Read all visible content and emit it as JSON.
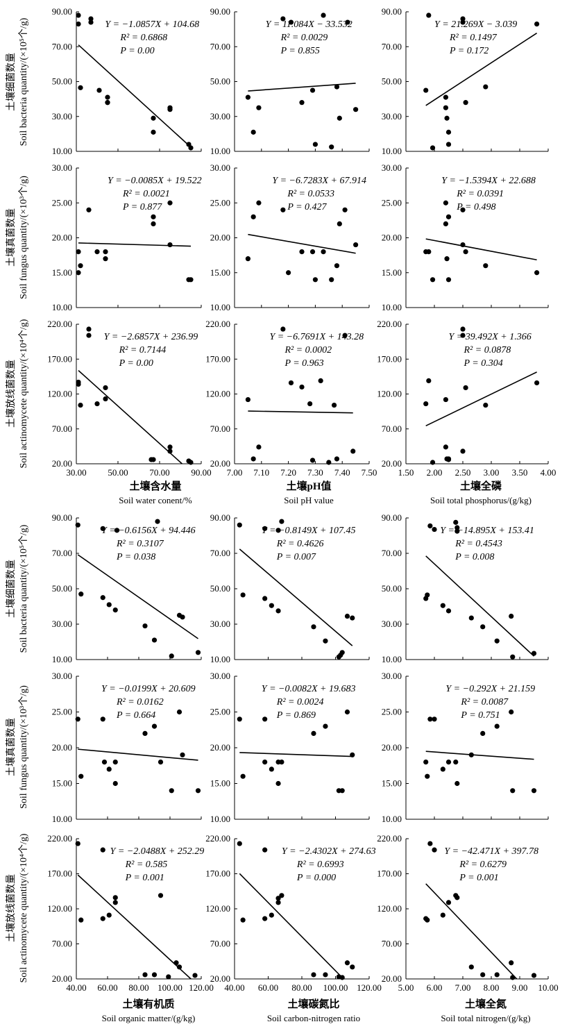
{
  "y_labels": {
    "bacteria_cn": "土壤细菌数量",
    "bacteria_en": "Soil bacteria quantity/(×10⁵个/g)",
    "fungus_cn": "土壤真菌数量",
    "fungus_en": "Soil fungus quantity/(×10³个/g)",
    "actino_cn": "土壤放线菌数量",
    "actino_en": "Soil actinomycete quantity/(×10⁴个/g)"
  },
  "x_labels": {
    "water_cn": "土壤含水量",
    "water_en": "Soil water conent/%",
    "ph_cn": "土壤pH值",
    "ph_en": "Soil pH value",
    "tp_cn": "土壤全磷",
    "tp_en": "Soil total phosphorus/(g/kg)",
    "om_cn": "土壤有机质",
    "om_en": "Soil organic matter/(g/kg)",
    "cn_cn": "土壤碳氮比",
    "cn_en": "Soil  carbon-nitrogen ratio",
    "tn_cn": "土壤全氮",
    "tn_en": "Soil total nitrogen/(g/kg)"
  },
  "chart_data": [
    {
      "type": "scatter",
      "id": "water-bacteria",
      "xlim": [
        30,
        90
      ],
      "ylim": [
        10,
        90
      ],
      "xticks": [
        "30.00",
        "50.00",
        "70.00",
        "90.00"
      ],
      "yticks": [
        "10.00",
        "30.00",
        "50.00",
        "70.00",
        "90.00"
      ],
      "show_xticks": false,
      "x": [
        31,
        31,
        32,
        37,
        37,
        41,
        45,
        45,
        45,
        67,
        67,
        75,
        75,
        84,
        85
      ],
      "y": [
        88,
        83,
        46.5,
        86,
        84,
        45,
        41,
        38,
        38,
        29,
        21,
        35,
        34,
        14,
        12
      ],
      "slope": -1.0857,
      "intercept": 104.68,
      "equation": "Y = −1.0857X + 104.68",
      "r2": "0.6868",
      "p": "0.00"
    },
    {
      "type": "scatter",
      "id": "ph-bacteria",
      "xlim": [
        7.0,
        7.5
      ],
      "ylim": [
        10,
        90
      ],
      "xticks": [
        "7.00",
        "7.10",
        "7.20",
        "7.30",
        "7.40",
        "7.50"
      ],
      "yticks": [
        "10.00",
        "30.00",
        "50.00",
        "70.00",
        "90.00"
      ],
      "show_xticks": false,
      "x": [
        7.05,
        7.07,
        7.09,
        7.18,
        7.21,
        7.25,
        7.29,
        7.3,
        7.33,
        7.36,
        7.38,
        7.39,
        7.42,
        7.45
      ],
      "y": [
        41,
        21,
        35,
        86,
        84,
        38,
        45,
        14,
        88,
        12.5,
        47,
        29,
        84,
        34
      ],
      "slope": 11.084,
      "intercept": -33.532,
      "equation": "Y = 11.084X −  33.532",
      "r2": "0.0029",
      "p": "0.855"
    },
    {
      "type": "scatter",
      "id": "tp-bacteria",
      "xlim": [
        1.5,
        4.0
      ],
      "ylim": [
        10,
        90
      ],
      "xticks": [
        "1.50",
        "2.00",
        "2.50",
        "3.00",
        "3.50",
        "4.00"
      ],
      "yticks": [
        "10.00",
        "30.00",
        "50.00",
        "70.00",
        "90.00"
      ],
      "show_xticks": false,
      "x": [
        1.85,
        1.9,
        1.97,
        2.2,
        2.2,
        2.22,
        2.25,
        2.25,
        2.5,
        2.5,
        2.55,
        2.9,
        3.8
      ],
      "y": [
        45,
        88,
        12,
        41,
        35,
        29,
        21,
        14,
        86,
        84,
        38,
        47,
        83
      ],
      "slope": 21.269,
      "intercept": -3.039,
      "equation": "Y = 21.269X −  3.039",
      "r2": "0.1497",
      "p": "0.172"
    },
    {
      "type": "scatter",
      "id": "water-fungus",
      "xlim": [
        30,
        90
      ],
      "ylim": [
        10,
        30
      ],
      "xticks": [
        "30.00",
        "50.00",
        "70.00",
        "90.00"
      ],
      "yticks": [
        "10.00",
        "15.00",
        "20.00",
        "25.00",
        "30.00"
      ],
      "show_xticks": false,
      "x": [
        31,
        31,
        32,
        36,
        40,
        44,
        44,
        67,
        67,
        75,
        75,
        84,
        85
      ],
      "y": [
        18,
        15,
        16,
        24,
        18,
        18,
        17,
        23,
        22,
        25,
        19,
        14,
        14
      ],
      "slope": -0.0085,
      "intercept": 19.522,
      "equation": "Y = −0.0085X + 19.522",
      "r2": "0.0021",
      "p": "0.877"
    },
    {
      "type": "scatter",
      "id": "ph-fungus",
      "xlim": [
        7.0,
        7.5
      ],
      "ylim": [
        10,
        30
      ],
      "xticks": [
        "7.00",
        "7.10",
        "7.20",
        "7.30",
        "7.40",
        "7.50"
      ],
      "yticks": [
        "10.00",
        "15.00",
        "20.00",
        "25.00",
        "30.00"
      ],
      "show_xticks": false,
      "x": [
        7.05,
        7.07,
        7.09,
        7.18,
        7.2,
        7.25,
        7.29,
        7.3,
        7.33,
        7.36,
        7.38,
        7.39,
        7.41,
        7.45
      ],
      "y": [
        17,
        23,
        25,
        24,
        15,
        18,
        18,
        14,
        18,
        14,
        16,
        22,
        24,
        19
      ],
      "slope": -6.7283,
      "intercept": 67.914,
      "equation": "Y = −6.7283X + 67.914",
      "r2": "0.0533",
      "p": "0.427"
    },
    {
      "type": "scatter",
      "id": "tp-fungus",
      "xlim": [
        1.5,
        4.0
      ],
      "ylim": [
        10,
        30
      ],
      "xticks": [
        "1.50",
        "2.00",
        "2.50",
        "3.00",
        "3.50",
        "4.00"
      ],
      "yticks": [
        "10.00",
        "15.00",
        "20.00",
        "25.00",
        "30.00"
      ],
      "show_xticks": false,
      "x": [
        1.85,
        1.9,
        1.97,
        2.2,
        2.2,
        2.22,
        2.25,
        2.25,
        2.5,
        2.5,
        2.55,
        2.9,
        3.8
      ],
      "y": [
        18,
        18,
        14,
        25,
        22,
        17,
        23,
        14,
        24,
        19,
        18,
        16,
        15
      ],
      "slope": -1.5394,
      "intercept": 22.688,
      "equation": "Y = −1.5394X + 22.688",
      "r2": "0.0391",
      "p": "0.498"
    },
    {
      "type": "scatter",
      "id": "water-actino",
      "xlim": [
        30,
        90
      ],
      "ylim": [
        20,
        220
      ],
      "xticks": [
        "30.00",
        "50.00",
        "70.00",
        "90.00"
      ],
      "yticks": [
        "20.00",
        "70.00",
        "120.00",
        "170.00",
        "220.00"
      ],
      "show_xticks": true,
      "x": [
        31,
        31,
        32,
        36,
        36,
        40,
        44,
        44,
        66,
        67,
        75,
        75,
        84,
        85
      ],
      "y": [
        137,
        134,
        104,
        213,
        204,
        106,
        129,
        113,
        26,
        26,
        44,
        38,
        24,
        22
      ],
      "slope": -2.6857,
      "intercept": 236.99,
      "equation": "Y = −2.6857X + 236.99",
      "r2": "0.7144",
      "p": "0.00"
    },
    {
      "type": "scatter",
      "id": "ph-actino",
      "xlim": [
        7.0,
        7.5
      ],
      "ylim": [
        20,
        220
      ],
      "xticks": [
        "7.00",
        "7.10",
        "7.20",
        "7.30",
        "7.40",
        "7.50"
      ],
      "yticks": [
        "20.00",
        "70.00",
        "120.00",
        "170.00",
        "220.00"
      ],
      "show_xticks": true,
      "x": [
        7.05,
        7.07,
        7.09,
        7.18,
        7.21,
        7.25,
        7.28,
        7.29,
        7.32,
        7.35,
        7.37,
        7.38,
        7.41,
        7.44
      ],
      "y": [
        112,
        27,
        44,
        213,
        136,
        130,
        106,
        25,
        139,
        22,
        104,
        27,
        204,
        38
      ],
      "slope": -6.7691,
      "intercept": 143.28,
      "equation": "Y = −6.7691X + 143.28",
      "r2": "0.0002",
      "p": "0.963"
    },
    {
      "type": "scatter",
      "id": "tp-actino",
      "xlim": [
        1.5,
        4.0
      ],
      "ylim": [
        20,
        220
      ],
      "xticks": [
        "1.50",
        "2.00",
        "2.50",
        "3.00",
        "3.50",
        "4.00"
      ],
      "yticks": [
        "20.00",
        "70.00",
        "120.00",
        "170.00",
        "220.00"
      ],
      "show_xticks": true,
      "x": [
        1.85,
        1.9,
        1.97,
        2.2,
        2.2,
        2.22,
        2.25,
        2.25,
        2.5,
        2.5,
        2.5,
        2.55,
        2.9,
        3.8
      ],
      "y": [
        106,
        139,
        22,
        44,
        112,
        27,
        27,
        26,
        213,
        204,
        38,
        129,
        104,
        136
      ],
      "slope": 39.492,
      "intercept": 1.366,
      "equation": "Y = 39.492X + 1.366",
      "r2": "0.0878",
      "p": "0.304"
    },
    {
      "type": "scatter",
      "id": "om-bacteria",
      "xlim": [
        40,
        120
      ],
      "ylim": [
        10,
        90
      ],
      "xticks": [
        "40.00",
        "60.00",
        "80.00",
        "100.00",
        "120.00"
      ],
      "yticks": [
        "10.00",
        "30.00",
        "50.00",
        "70.00",
        "90.00"
      ],
      "show_xticks": false,
      "x": [
        41,
        43,
        57,
        57,
        61,
        65,
        66,
        84,
        90,
        92,
        101,
        106,
        108,
        118
      ],
      "y": [
        86,
        47,
        84,
        45,
        41,
        38,
        83,
        29,
        21,
        88,
        12,
        35,
        34,
        14
      ],
      "slope": -0.6156,
      "intercept": 94.446,
      "equation": "Y = −0.6156X + 94.446",
      "r2": "0.3107",
      "p": "0.038"
    },
    {
      "type": "scatter",
      "id": "cn-bacteria",
      "xlim": [
        40,
        120
      ],
      "ylim": [
        10,
        90
      ],
      "xticks": [
        "40.00",
        "60.00",
        "80.00",
        "100.00",
        "120.00"
      ],
      "yticks": [
        "10.00",
        "30.00",
        "50.00",
        "70.00",
        "90.00"
      ],
      "show_xticks": false,
      "x": [
        43,
        45,
        58,
        58,
        62,
        66,
        66,
        68,
        87,
        94,
        102,
        103,
        104,
        107,
        110
      ],
      "y": [
        86,
        46.5,
        84,
        44.5,
        40.5,
        37.5,
        83,
        88,
        28.5,
        20.5,
        11.5,
        12.5,
        14,
        34.5,
        33.5
      ],
      "slope": -0.8149,
      "intercept": 107.45,
      "equation": "Y = −0.8149X + 107.45",
      "r2": "0.4626",
      "p": "0.007"
    },
    {
      "type": "scatter",
      "id": "tn-bacteria",
      "xlim": [
        5,
        10
      ],
      "ylim": [
        10,
        90
      ],
      "xticks": [
        "5.00",
        "6.00",
        "7.00",
        "8.00",
        "9.00",
        "10.00"
      ],
      "yticks": [
        "10.00",
        "30.00",
        "50.00",
        "70.00",
        "90.00"
      ],
      "show_xticks": false,
      "x": [
        5.7,
        5.75,
        5.85,
        6.0,
        6.3,
        6.5,
        6.75,
        6.8,
        6.8,
        7.3,
        7.7,
        8.2,
        8.7,
        8.75,
        9.5
      ],
      "y": [
        44.5,
        46.5,
        85.5,
        83.5,
        40.5,
        37.5,
        87.5,
        82.5,
        84.5,
        33.5,
        28.5,
        20.5,
        34.5,
        11.5,
        13.5
      ],
      "slope": -14.895,
      "intercept": 153.41,
      "equation": "Y = −14.895X + 153.41",
      "r2": "0.4543",
      "p": "0.008"
    },
    {
      "type": "scatter",
      "id": "om-fungus",
      "xlim": [
        40,
        120
      ],
      "ylim": [
        10,
        30
      ],
      "xticks": [
        "40.00",
        "60.00",
        "80.00",
        "100.00",
        "120.00"
      ],
      "yticks": [
        "10.00",
        "15.00",
        "20.00",
        "25.00",
        "30.00"
      ],
      "show_xticks": false,
      "x": [
        41,
        43,
        57,
        58,
        61,
        65,
        65,
        84,
        90,
        94,
        101,
        106,
        108,
        118
      ],
      "y": [
        24,
        16,
        24,
        18,
        17,
        18,
        15,
        22,
        23,
        18,
        14,
        25,
        19,
        14
      ],
      "slope": -0.0199,
      "intercept": 20.609,
      "equation": "Y = −0.0199X + 20.609",
      "r2": "0.0162",
      "p": "0.664"
    },
    {
      "type": "scatter",
      "id": "cn-fungus",
      "xlim": [
        40,
        120
      ],
      "ylim": [
        10,
        30
      ],
      "xticks": [
        "40.00",
        "60.00",
        "80.00",
        "100.00",
        "120.00"
      ],
      "yticks": [
        "10.00",
        "15.00",
        "20.00",
        "25.00",
        "30.00"
      ],
      "show_xticks": false,
      "x": [
        43,
        45,
        58,
        58,
        62,
        66,
        66,
        68,
        87,
        94,
        102,
        104,
        107,
        110
      ],
      "y": [
        24,
        16,
        24,
        18,
        17,
        18,
        15,
        18,
        22,
        23,
        14,
        14,
        25,
        19
      ],
      "slope": -0.0082,
      "intercept": 19.683,
      "equation": "Y = −0.0082X + 19.683",
      "r2": "0.0024",
      "p": "0.869"
    },
    {
      "type": "scatter",
      "id": "tn-fungus",
      "xlim": [
        5,
        10
      ],
      "ylim": [
        10,
        30
      ],
      "xticks": [
        "5.00",
        "6.00",
        "7.00",
        "8.00",
        "9.00",
        "10.00"
      ],
      "yticks": [
        "10.00",
        "15.00",
        "20.00",
        "25.00",
        "30.00"
      ],
      "show_xticks": false,
      "x": [
        5.7,
        5.75,
        5.85,
        6.0,
        6.3,
        6.5,
        6.75,
        6.8,
        7.3,
        7.7,
        8.2,
        8.7,
        8.75,
        9.5
      ],
      "y": [
        18,
        16,
        24,
        24,
        17,
        18,
        18,
        15,
        19,
        22,
        23,
        25,
        14,
        14
      ],
      "slope": -0.292,
      "intercept": 21.159,
      "equation": "Y = −0.292X + 21.159",
      "r2": "0.0087",
      "p": "0.751"
    },
    {
      "type": "scatter",
      "id": "om-actino",
      "xlim": [
        40,
        120
      ],
      "ylim": [
        20,
        220
      ],
      "xticks": [
        "40.00",
        "60.00",
        "80.00",
        "100.00",
        "120.00"
      ],
      "yticks": [
        "20.00",
        "70.00",
        "120.00",
        "170.00",
        "220.00"
      ],
      "show_xticks": true,
      "x": [
        41,
        43,
        57,
        57,
        61,
        65,
        65,
        84,
        90,
        94,
        99,
        104,
        106,
        116
      ],
      "y": [
        213,
        104,
        106,
        204,
        111,
        129,
        136,
        26,
        26,
        139,
        23,
        43,
        37,
        25
      ],
      "slope": -2.0488,
      "intercept": 252.29,
      "equation": "Y = −2.0488X + 252.29",
      "r2": "0.585",
      "p": "0.001"
    },
    {
      "type": "scatter",
      "id": "cn-actino",
      "xlim": [
        40,
        120
      ],
      "ylim": [
        20,
        220
      ],
      "xticks": [
        "40.00",
        "60.00",
        "80.00",
        "100.00",
        "120.00"
      ],
      "yticks": [
        "20.00",
        "70.00",
        "120.00",
        "170.00",
        "220.00"
      ],
      "show_xticks": true,
      "x": [
        43,
        45,
        58,
        58,
        62,
        66,
        66,
        68,
        87,
        94,
        102,
        104,
        107,
        110
      ],
      "y": [
        213,
        104,
        106,
        204,
        111,
        129,
        135,
        139,
        26,
        26,
        23,
        22,
        43,
        37
      ],
      "slope": -2.4302,
      "intercept": 274.63,
      "equation": "Y = −2.4302X + 274.63",
      "r2": "0.6993",
      "p": "0.000"
    },
    {
      "type": "scatter",
      "id": "tn-actino",
      "xlim": [
        5,
        10
      ],
      "ylim": [
        20,
        220
      ],
      "xticks": [
        "5.00",
        "6.00",
        "7.00",
        "8.00",
        "9.00",
        "10.00"
      ],
      "yticks": [
        "20.00",
        "70.00",
        "120.00",
        "170.00",
        "220.00"
      ],
      "show_xticks": true,
      "x": [
        5.7,
        5.75,
        5.85,
        6.0,
        6.3,
        6.5,
        6.75,
        6.8,
        7.3,
        7.7,
        8.2,
        8.7,
        8.75,
        9.5
      ],
      "y": [
        106,
        104,
        213,
        204,
        111,
        129,
        139,
        136,
        37,
        26,
        26,
        43,
        22,
        25
      ],
      "slope": -42.471,
      "intercept": 397.78,
      "equation": "Y = −42.471X + 397.78",
      "r2": "0.6279",
      "p": "0.001"
    }
  ]
}
